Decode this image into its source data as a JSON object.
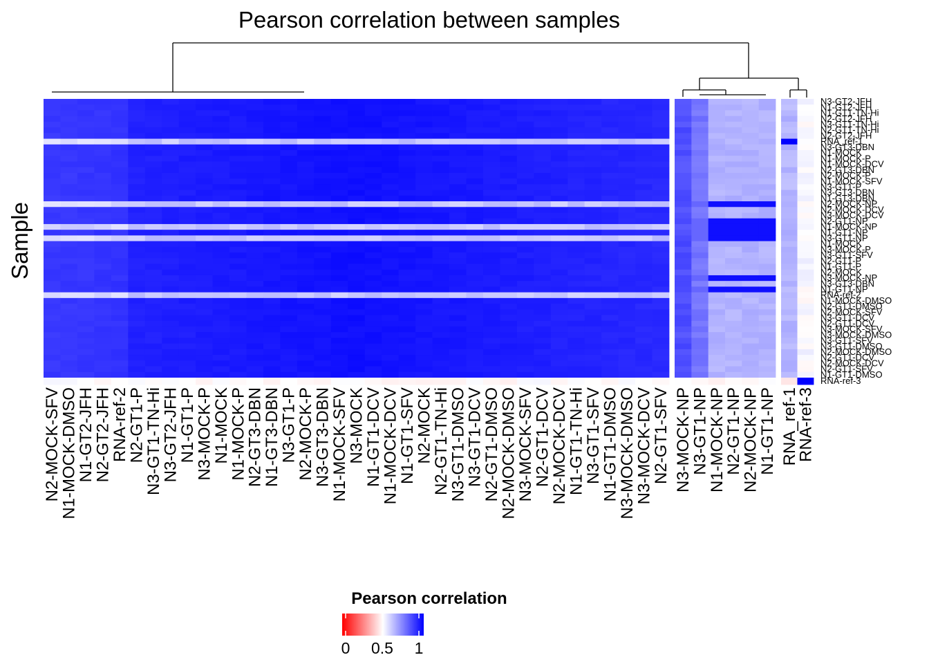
{
  "chart_data": {
    "type": "heatmap",
    "title": "Pearson correlation between samples",
    "ylabel": "Sample",
    "legend": {
      "title": "Pearson correlation",
      "ticks": [
        "0",
        "0.5",
        "1"
      ],
      "tick_values": [
        0,
        0.5,
        1
      ],
      "colors": [
        "#ff0000",
        "#ffffff",
        "#0000ff"
      ],
      "placement": "bottom-center"
    },
    "columns": [
      "N2-MOCK-SFV",
      "N1-MOCK-DMSO",
      "N1-GT2-JFH",
      "N2-GT2-JFH",
      "RNA-ref-2",
      "N2-GT1-P",
      "N3-GT1-TN-Hi",
      "N3-GT2-JFH",
      "N1-GT1-P",
      "N3-MOCK-P",
      "N1-MOCK",
      "N1-MOCK-P",
      "N2-GT3-DBN",
      "N1-GT3-DBN",
      "N3-GT1-P",
      "N2-MOCK-P",
      "N3-GT3-DBN",
      "N1-MOCK-SFV",
      "N3-MOCK",
      "N1-GT1-DCV",
      "N1-MOCK-DCV",
      "N1-GT1-SFV",
      "N2-MOCK",
      "N2-GT1-TN-Hi",
      "N3-GT1-DMSO",
      "N3-GT1-DCV",
      "N2-GT1-DMSO",
      "N2-MOCK-DMSO",
      "N3-MOCK-SFV",
      "N2-GT1-DCV",
      "N2-MOCK-DCV",
      "N1-GT1-TN-Hi",
      "N3-GT1-SFV",
      "N1-GT1-DMSO",
      "N3-MOCK-DMSO",
      "N3-MOCK-DCV",
      "N2-GT1-SFV",
      "N3-MOCK-NP",
      "N3-GT1-NP",
      "N1-MOCK-NP",
      "N2-GT1-NP",
      "N2-MOCK-NP",
      "N1-GT1-NP",
      "RNA_ref-1",
      "RNA-ref-3"
    ],
    "column_groups": [
      37,
      6,
      2
    ],
    "rows": [
      "N3-GT2-JFH",
      "N1-GT2-JFH",
      "N1-GT1-TN-Hi",
      "N2-GT2-JFH",
      "N3-GT1-TN-Hi",
      "N2-GT1-TN-Hi",
      "N2-GT2-JFH",
      "RNA_ref-1",
      "N3-GT3-DBN",
      "N1-MOCK",
      "N1-MOCK-P",
      "N1-MOCK-DCV",
      "N2-GT3-DBN",
      "N2-MOCK-P",
      "N1-MOCK-SFV",
      "N3-GT1-P",
      "N3-GT3-DBN",
      "N1-GT3-DBN",
      "N2-MOCK-NP",
      "N2-MOCK-DCV",
      "N3-MOCK-DCV",
      "N2-GT1-NP",
      "N1-MOCK-NP",
      "N1-GT1-NP",
      "N3-GT1-NP",
      "N1-MOCK",
      "N3-MOCK-P",
      "N3-GT1-SFV",
      "N2-GT1-P",
      "N1-GT1-P",
      "N2-MOCK",
      "N3-MOCK-NP",
      "N3-GT3-DBN",
      "N1-GT1-NP",
      "RNA-ref-2",
      "N1-MOCK-DMSO",
      "N2-GT1-DMSO",
      "N2-MOCK-SFV",
      "N3-GT1-DCV",
      "N2-GT1-DCV",
      "N3-MOCK-SFV",
      "N3-MOCK-DMSO",
      "N3-GT1-SFV",
      "N3-GT1-DMSO",
      "N2-MOCK-DMSO",
      "N2-GT1-DCV",
      "N2-MOCK-DCV",
      "N2-GT1-SFV",
      "N1-GT1-DMSO",
      "RNA-ref-3"
    ],
    "value_range": [
      0,
      1
    ],
    "values_note_levels": {
      "main_block_typical": 0.93,
      "np_block_vs_main": 0.75,
      "np_block_within": 0.97,
      "rna_ref_vs_samples": 0.62,
      "rna_ref3_vs_samples": 0.45
    },
    "grid": false
  }
}
